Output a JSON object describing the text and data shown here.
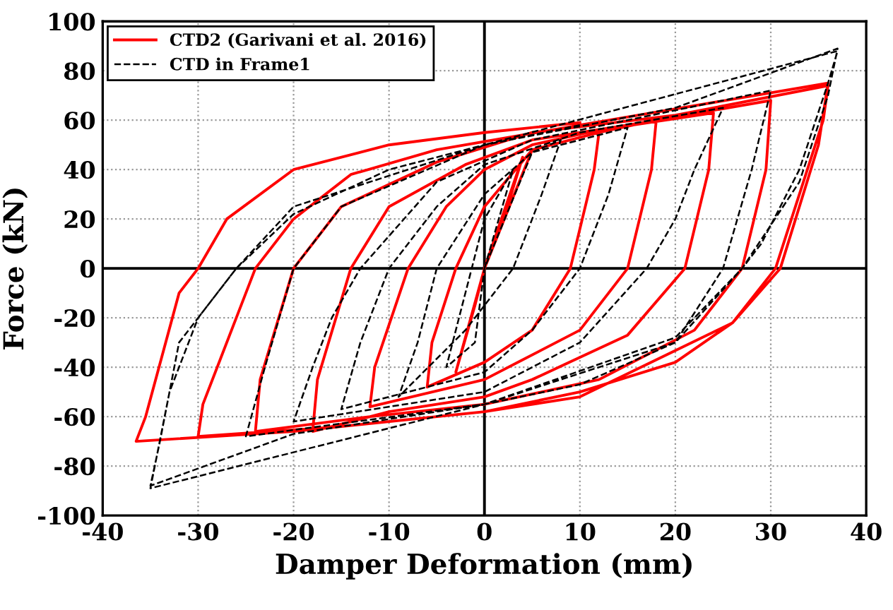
{
  "chart_data": {
    "type": "line",
    "xlabel": "Damper Deformation (mm)",
    "ylabel": "Force (kN)",
    "xlim": [
      -40,
      40
    ],
    "xticks": [
      -40,
      -30,
      -20,
      -10,
      0,
      10,
      20,
      30,
      40
    ],
    "ylim": [
      -100,
      100
    ],
    "yticks": [
      -100,
      -80,
      -60,
      -40,
      -20,
      0,
      20,
      40,
      60,
      80,
      100
    ],
    "grid": true,
    "legend": "top left",
    "marker": "none",
    "series": [
      {
        "name": "CTD2 (Garivani et al. 2016)",
        "color": "#ff0000",
        "line_style": "solid",
        "x": [
          0,
          4,
          2,
          0,
          -3,
          -1,
          0,
          5,
          12,
          11.5,
          9,
          5,
          0,
          -6,
          -5.5,
          -3,
          0,
          5,
          12,
          18,
          17.5,
          15,
          10,
          0,
          -12,
          -11.5,
          -8,
          -4,
          0,
          5,
          12,
          24,
          23.5,
          21,
          15,
          5,
          0,
          -10,
          -18,
          -17.5,
          -14,
          -10,
          -2,
          5,
          15,
          30,
          29.5,
          27,
          22,
          12,
          0,
          -12,
          -24,
          -23.5,
          -20,
          -15,
          -5,
          5,
          20,
          36,
          35.5,
          33,
          30.5,
          26,
          20,
          10,
          0,
          -15,
          -30,
          -29.5,
          -26,
          -24,
          -20,
          -14,
          -5,
          10,
          36,
          35,
          31,
          26,
          10,
          0,
          -20,
          -36.5,
          -35.5,
          -32,
          -30,
          -27,
          -20,
          -10,
          0,
          10
        ],
        "values": [
          0,
          45,
          20,
          0,
          -42,
          -15,
          0,
          48,
          55,
          40,
          0,
          -25,
          -38,
          -48,
          -30,
          0,
          25,
          48,
          55,
          60,
          40,
          0,
          -25,
          -45,
          -56,
          -40,
          0,
          25,
          40,
          50,
          56,
          63,
          40,
          0,
          -27,
          -45,
          -52,
          -58,
          -66,
          -45,
          0,
          25,
          42,
          52,
          58,
          68,
          40,
          0,
          -25,
          -45,
          -55,
          -60,
          -66,
          -45,
          0,
          25,
          43,
          55,
          62,
          74,
          60,
          30,
          0,
          -22,
          -38,
          -50,
          -58,
          -64,
          -68,
          -55,
          -20,
          0,
          20,
          38,
          48,
          58,
          75,
          50,
          0,
          -22,
          -52,
          -58,
          -66,
          -70,
          -60,
          -10,
          0,
          20,
          40,
          50,
          55,
          59
        ]
      },
      {
        "name": "CTD in Frame1",
        "color": "#000000",
        "line_style": "dashed",
        "x": [
          0,
          3,
          0,
          -4,
          -1,
          0,
          5,
          8,
          6,
          3,
          -2,
          -9,
          -7,
          -5,
          0,
          5,
          15,
          13,
          10,
          5,
          0,
          -15,
          -13,
          -10,
          -5,
          0,
          10,
          25,
          22,
          20,
          17,
          10,
          0,
          -20,
          -18,
          -16,
          -13,
          -5,
          5,
          30,
          28,
          25,
          20,
          0,
          -25,
          -23,
          -20,
          -15,
          0,
          37,
          36,
          33,
          29,
          27,
          20,
          10,
          0,
          -20,
          -35,
          -34,
          -32,
          -28,
          -26,
          -20,
          -10,
          0,
          20,
          37,
          36,
          33,
          27,
          20,
          0,
          -35,
          -33,
          -30,
          -26,
          -20,
          0,
          10
        ],
        "values": [
          0,
          40,
          20,
          -40,
          -30,
          0,
          47,
          52,
          30,
          0,
          -25,
          -52,
          -30,
          0,
          30,
          47,
          57,
          30,
          0,
          -25,
          -42,
          -57,
          -30,
          0,
          25,
          42,
          55,
          65,
          40,
          20,
          0,
          -30,
          -50,
          -62,
          -40,
          -20,
          0,
          35,
          52,
          72,
          40,
          0,
          -30,
          -55,
          -68,
          -40,
          0,
          25,
          50,
          88,
          75,
          40,
          10,
          0,
          -30,
          -47,
          -55,
          -67,
          -88,
          -70,
          -30,
          -10,
          0,
          22,
          40,
          50,
          65,
          89,
          70,
          35,
          0,
          -28,
          -55,
          -89,
          -50,
          -20,
          0,
          25,
          50,
          58
        ]
      }
    ]
  }
}
